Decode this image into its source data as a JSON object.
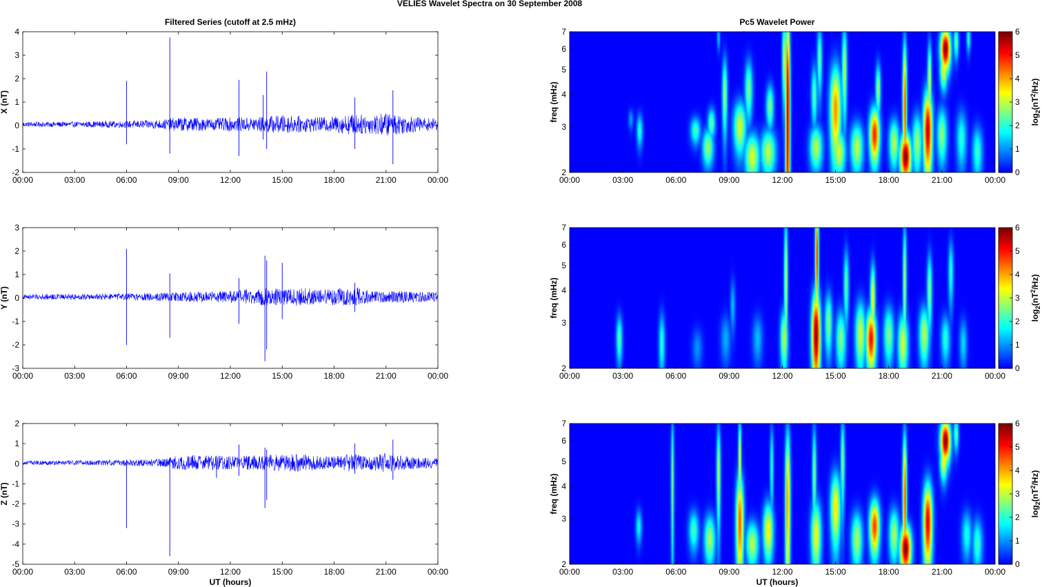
{
  "figure": {
    "suptitle": "VELIES Wavelet Spectra on 30 September 2008",
    "left_title": "Filtered Series (cutoff at 2.5 mHz)",
    "right_title": "Pc5 Wavelet Power",
    "xlabel": "UT (hours)",
    "ylabel_freq": "freq (mHz)",
    "colorbar_label": "log2(nT²/Hz)",
    "colorbar_label_base": "log",
    "colorbar_label_sub": "2",
    "colorbar_label_mid": "(nT",
    "colorbar_label_sup": "2",
    "colorbar_label_end": "/Hz)",
    "colormap": "jet",
    "line_color": "#0000ff"
  },
  "chart_data": [
    {
      "type": "line",
      "component": "X",
      "ylabel": "X (nT)",
      "xlim": [
        0,
        24
      ],
      "ylim": [
        -2,
        4
      ],
      "yticks": [
        "4",
        "3",
        "2",
        "1",
        "0",
        "-1",
        "-2"
      ],
      "xticks": [
        "00:00",
        "03:00",
        "06:00",
        "09:00",
        "12:00",
        "15:00",
        "18:00",
        "21:00",
        "00:00"
      ],
      "noise_envelope": [
        [
          0,
          0.1
        ],
        [
          3,
          0.12
        ],
        [
          6,
          0.15
        ],
        [
          8,
          0.2
        ],
        [
          9,
          0.3
        ],
        [
          10,
          0.3
        ],
        [
          11,
          0.25
        ],
        [
          12,
          0.3
        ],
        [
          13,
          0.3
        ],
        [
          14,
          0.35
        ],
        [
          15,
          0.4
        ],
        [
          16,
          0.35
        ],
        [
          17,
          0.3
        ],
        [
          18,
          0.35
        ],
        [
          19,
          0.45
        ],
        [
          20,
          0.4
        ],
        [
          21,
          0.5
        ],
        [
          22,
          0.4
        ],
        [
          23,
          0.3
        ],
        [
          24,
          0.25
        ]
      ],
      "spikes": [
        {
          "t": 6.0,
          "max": 1.9,
          "min": -0.8
        },
        {
          "t": 8.5,
          "max": 3.75,
          "min": -1.2
        },
        {
          "t": 12.5,
          "max": 1.95,
          "min": -1.3
        },
        {
          "t": 14.1,
          "max": 2.3,
          "min": -1.0
        },
        {
          "t": 13.9,
          "max": 1.3,
          "min": -0.6
        },
        {
          "t": 19.2,
          "max": 1.2,
          "min": -1.0
        },
        {
          "t": 21.4,
          "max": 1.5,
          "min": -1.65
        }
      ]
    },
    {
      "type": "line",
      "component": "Y",
      "ylabel": "Y (nT)",
      "xlim": [
        0,
        24
      ],
      "ylim": [
        -3,
        3
      ],
      "yticks": [
        "3",
        "2",
        "1",
        "0",
        "-1",
        "-2",
        "-3"
      ],
      "xticks": [
        "00:00",
        "03:00",
        "06:00",
        "09:00",
        "12:00",
        "15:00",
        "18:00",
        "21:00",
        "00:00"
      ],
      "noise_envelope": [
        [
          0,
          0.12
        ],
        [
          3,
          0.12
        ],
        [
          6,
          0.15
        ],
        [
          9,
          0.2
        ],
        [
          12,
          0.25
        ],
        [
          14,
          0.4
        ],
        [
          15,
          0.35
        ],
        [
          16,
          0.4
        ],
        [
          17,
          0.3
        ],
        [
          18,
          0.35
        ],
        [
          19,
          0.45
        ],
        [
          20,
          0.3
        ],
        [
          21,
          0.25
        ],
        [
          22,
          0.25
        ],
        [
          24,
          0.2
        ]
      ],
      "spikes": [
        {
          "t": 6.0,
          "max": 2.1,
          "min": -2.0
        },
        {
          "t": 8.5,
          "max": 1.05,
          "min": -1.7
        },
        {
          "t": 12.5,
          "max": 0.85,
          "min": -1.1
        },
        {
          "t": 14.0,
          "max": 1.8,
          "min": -2.7
        },
        {
          "t": 14.1,
          "max": 1.6,
          "min": -2.2
        },
        {
          "t": 15.0,
          "max": 1.5,
          "min": -0.9
        },
        {
          "t": 19.2,
          "max": 0.65,
          "min": -0.6
        }
      ]
    },
    {
      "type": "line",
      "component": "Z",
      "ylabel": "Z (nT)",
      "xlim": [
        0,
        24
      ],
      "ylim": [
        -5,
        2
      ],
      "yticks": [
        "2",
        "1",
        "0",
        "-1",
        "-2",
        "-3",
        "-4",
        "-5"
      ],
      "xticks": [
        "00:00",
        "03:00",
        "06:00",
        "09:00",
        "12:00",
        "15:00",
        "18:00",
        "21:00",
        "00:00"
      ],
      "noise_envelope": [
        [
          0,
          0.1
        ],
        [
          3,
          0.12
        ],
        [
          6,
          0.15
        ],
        [
          8,
          0.2
        ],
        [
          9,
          0.35
        ],
        [
          10,
          0.4
        ],
        [
          11,
          0.35
        ],
        [
          12,
          0.35
        ],
        [
          13,
          0.35
        ],
        [
          14,
          0.4
        ],
        [
          15,
          0.45
        ],
        [
          16,
          0.45
        ],
        [
          17,
          0.35
        ],
        [
          18,
          0.35
        ],
        [
          19,
          0.45
        ],
        [
          20,
          0.35
        ],
        [
          21,
          0.5
        ],
        [
          22,
          0.35
        ],
        [
          24,
          0.25
        ]
      ],
      "spikes": [
        {
          "t": 6.0,
          "max": 0.2,
          "min": -3.2
        },
        {
          "t": 8.5,
          "max": 0.3,
          "min": -4.6
        },
        {
          "t": 11.2,
          "max": 0.4,
          "min": -0.7
        },
        {
          "t": 12.5,
          "max": 0.95,
          "min": -0.6
        },
        {
          "t": 14.0,
          "max": 0.8,
          "min": -2.2
        },
        {
          "t": 14.1,
          "max": 0.7,
          "min": -1.8
        },
        {
          "t": 19.2,
          "max": 1.0,
          "min": -0.5
        },
        {
          "t": 21.4,
          "max": 1.2,
          "min": -0.8
        }
      ]
    },
    {
      "type": "heatmap",
      "component": "X",
      "ylabel": "freq (mHz)",
      "xlim": [
        0,
        24
      ],
      "ylim": [
        2,
        7
      ],
      "yscale": "log",
      "yticks": [
        2,
        3,
        4,
        5,
        6,
        7
      ],
      "xticks": [
        "00:00",
        "03:00",
        "06:00",
        "09:00",
        "12:00",
        "15:00",
        "18:00",
        "21:00",
        "00:00"
      ],
      "clim": [
        0,
        6
      ],
      "cbar_ticks": [
        0,
        1,
        2,
        3,
        4,
        5,
        6
      ],
      "blobs": [
        {
          "t": 3.95,
          "f": 2.9,
          "p": 2.0,
          "w": 0.12,
          "h": 0.3
        },
        {
          "t": 3.45,
          "f": 3.2,
          "p": 1.1,
          "w": 0.1,
          "h": 0.2
        },
        {
          "t": 7.1,
          "f": 2.9,
          "p": 2.2,
          "w": 0.2,
          "h": 0.25
        },
        {
          "t": 7.8,
          "f": 2.5,
          "p": 2.8,
          "w": 0.22,
          "h": 0.3
        },
        {
          "t": 8.0,
          "f": 3.1,
          "p": 2.4,
          "w": 0.15,
          "h": 0.3
        },
        {
          "t": 8.75,
          "f": 4.0,
          "p": 2.8,
          "w": 0.1,
          "h": 1.0
        },
        {
          "t": 9.6,
          "f": 3.0,
          "p": 3.2,
          "w": 0.25,
          "h": 0.5
        },
        {
          "t": 10.3,
          "f": 2.3,
          "p": 3.2,
          "w": 0.3,
          "h": 0.35
        },
        {
          "t": 10.1,
          "f": 4.2,
          "p": 2.6,
          "w": 0.15,
          "h": 0.8
        },
        {
          "t": 11.2,
          "f": 2.4,
          "p": 3.0,
          "w": 0.3,
          "h": 0.35
        },
        {
          "t": 11.3,
          "f": 3.6,
          "p": 2.6,
          "w": 0.15,
          "h": 0.5
        },
        {
          "t": 12.3,
          "f": 3.5,
          "p": 5.8,
          "w": 0.09,
          "h": 3.0
        },
        {
          "t": 12.1,
          "f": 5.5,
          "p": 3.0,
          "w": 0.08,
          "h": 1.5
        },
        {
          "t": 13.9,
          "f": 2.5,
          "p": 3.0,
          "w": 0.25,
          "h": 0.35
        },
        {
          "t": 13.8,
          "f": 4.0,
          "p": 2.3,
          "w": 0.12,
          "h": 0.8
        },
        {
          "t": 14.1,
          "f": 5.5,
          "p": 2.4,
          "w": 0.1,
          "h": 1.2
        },
        {
          "t": 15.0,
          "f": 3.5,
          "p": 4.2,
          "w": 0.22,
          "h": 1.1
        },
        {
          "t": 15.5,
          "f": 5.0,
          "p": 3.0,
          "w": 0.1,
          "h": 1.5
        },
        {
          "t": 15.2,
          "f": 2.4,
          "p": 3.2,
          "w": 0.25,
          "h": 0.35
        },
        {
          "t": 16.2,
          "f": 2.5,
          "p": 3.0,
          "w": 0.25,
          "h": 0.4
        },
        {
          "t": 17.2,
          "f": 2.8,
          "p": 5.0,
          "w": 0.2,
          "h": 0.5
        },
        {
          "t": 17.4,
          "f": 4.2,
          "p": 2.8,
          "w": 0.1,
          "h": 0.7
        },
        {
          "t": 18.3,
          "f": 2.6,
          "p": 3.0,
          "w": 0.2,
          "h": 0.4
        },
        {
          "t": 18.95,
          "f": 2.3,
          "p": 6.0,
          "w": 0.22,
          "h": 0.35
        },
        {
          "t": 18.9,
          "f": 3.6,
          "p": 4.8,
          "w": 0.08,
          "h": 1.8
        },
        {
          "t": 19.6,
          "f": 2.6,
          "p": 2.8,
          "w": 0.2,
          "h": 0.5
        },
        {
          "t": 20.2,
          "f": 2.9,
          "p": 5.6,
          "w": 0.18,
          "h": 0.8
        },
        {
          "t": 20.3,
          "f": 4.5,
          "p": 3.2,
          "w": 0.08,
          "h": 1.2
        },
        {
          "t": 21.0,
          "f": 2.8,
          "p": 2.7,
          "w": 0.2,
          "h": 0.5
        },
        {
          "t": 21.2,
          "f": 6.0,
          "p": 6.0,
          "w": 0.2,
          "h": 0.8
        },
        {
          "t": 21.1,
          "f": 5.0,
          "p": 3.5,
          "w": 0.15,
          "h": 0.6
        },
        {
          "t": 21.8,
          "f": 6.4,
          "p": 2.4,
          "w": 0.1,
          "h": 0.7
        },
        {
          "t": 22.5,
          "f": 6.6,
          "p": 2.0,
          "w": 0.08,
          "h": 0.6
        },
        {
          "t": 22.1,
          "f": 2.7,
          "p": 2.0,
          "w": 0.2,
          "h": 0.5
        },
        {
          "t": 23.0,
          "f": 2.4,
          "p": 2.1,
          "w": 0.2,
          "h": 0.4
        },
        {
          "t": 8.4,
          "f": 6.6,
          "p": 1.5,
          "w": 0.06,
          "h": 0.5
        }
      ]
    },
    {
      "type": "heatmap",
      "component": "Y",
      "ylabel": "freq (mHz)",
      "xlim": [
        0,
        24
      ],
      "ylim": [
        2,
        7
      ],
      "yscale": "log",
      "yticks": [
        2,
        3,
        4,
        5,
        6,
        7
      ],
      "xticks": [
        "00:00",
        "03:00",
        "06:00",
        "09:00",
        "12:00",
        "15:00",
        "18:00",
        "21:00",
        "00:00"
      ],
      "clim": [
        0,
        6
      ],
      "cbar_ticks": [
        0,
        1,
        2,
        3,
        4,
        5,
        6
      ],
      "blobs": [
        {
          "t": 2.8,
          "f": 2.6,
          "p": 2.3,
          "w": 0.12,
          "h": 0.4
        },
        {
          "t": 5.2,
          "f": 2.5,
          "p": 2.0,
          "w": 0.12,
          "h": 0.5
        },
        {
          "t": 7.2,
          "f": 2.4,
          "p": 1.0,
          "w": 0.2,
          "h": 0.3
        },
        {
          "t": 8.8,
          "f": 2.6,
          "p": 1.2,
          "w": 0.2,
          "h": 0.4
        },
        {
          "t": 9.2,
          "f": 3.5,
          "p": 1.3,
          "w": 0.1,
          "h": 0.6
        },
        {
          "t": 10.6,
          "f": 2.6,
          "p": 1.3,
          "w": 0.2,
          "h": 0.4
        },
        {
          "t": 12.1,
          "f": 2.6,
          "p": 3.0,
          "w": 0.15,
          "h": 0.5
        },
        {
          "t": 12.2,
          "f": 4.5,
          "p": 3.2,
          "w": 0.07,
          "h": 2.0
        },
        {
          "t": 13.9,
          "f": 2.7,
          "p": 6.0,
          "w": 0.17,
          "h": 0.8
        },
        {
          "t": 13.95,
          "f": 5.5,
          "p": 5.0,
          "w": 0.07,
          "h": 2.0
        },
        {
          "t": 14.6,
          "f": 3.0,
          "p": 2.6,
          "w": 0.15,
          "h": 0.6
        },
        {
          "t": 15.3,
          "f": 2.6,
          "p": 2.6,
          "w": 0.2,
          "h": 0.5
        },
        {
          "t": 15.6,
          "f": 4.2,
          "p": 2.4,
          "w": 0.1,
          "h": 1.0
        },
        {
          "t": 16.4,
          "f": 2.7,
          "p": 3.2,
          "w": 0.2,
          "h": 0.6
        },
        {
          "t": 17.0,
          "f": 2.6,
          "p": 5.2,
          "w": 0.2,
          "h": 0.5
        },
        {
          "t": 17.1,
          "f": 3.7,
          "p": 3.4,
          "w": 0.1,
          "h": 0.9
        },
        {
          "t": 18.0,
          "f": 2.7,
          "p": 2.6,
          "w": 0.2,
          "h": 0.5
        },
        {
          "t": 18.8,
          "f": 2.5,
          "p": 3.2,
          "w": 0.2,
          "h": 0.5
        },
        {
          "t": 18.9,
          "f": 4.4,
          "p": 3.0,
          "w": 0.07,
          "h": 1.8
        },
        {
          "t": 20.0,
          "f": 2.7,
          "p": 3.0,
          "w": 0.2,
          "h": 0.5
        },
        {
          "t": 20.3,
          "f": 4.0,
          "p": 2.6,
          "w": 0.1,
          "h": 1.0
        },
        {
          "t": 21.2,
          "f": 2.6,
          "p": 2.0,
          "w": 0.18,
          "h": 0.4
        },
        {
          "t": 21.5,
          "f": 4.7,
          "p": 2.0,
          "w": 0.1,
          "h": 1.0
        },
        {
          "t": 22.2,
          "f": 2.5,
          "p": 1.5,
          "w": 0.15,
          "h": 0.4
        }
      ]
    },
    {
      "type": "heatmap",
      "component": "Z",
      "ylabel": "freq (mHz)",
      "xlim": [
        0,
        24
      ],
      "ylim": [
        2,
        7
      ],
      "yscale": "log",
      "yticks": [
        2,
        3,
        4,
        5,
        6,
        7
      ],
      "xticks": [
        "00:00",
        "03:00",
        "06:00",
        "09:00",
        "12:00",
        "15:00",
        "18:00",
        "21:00",
        "00:00"
      ],
      "clim": [
        0,
        6
      ],
      "cbar_ticks": [
        0,
        1,
        2,
        3,
        4,
        5,
        6
      ],
      "blobs": [
        {
          "t": 3.9,
          "f": 2.8,
          "p": 1.8,
          "w": 0.12,
          "h": 0.3
        },
        {
          "t": 5.8,
          "f": 4.2,
          "p": 2.6,
          "w": 0.06,
          "h": 2.0
        },
        {
          "t": 7.0,
          "f": 2.7,
          "p": 2.2,
          "w": 0.2,
          "h": 0.35
        },
        {
          "t": 7.9,
          "f": 2.5,
          "p": 2.9,
          "w": 0.22,
          "h": 0.4
        },
        {
          "t": 8.4,
          "f": 4.5,
          "p": 3.0,
          "w": 0.08,
          "h": 1.5
        },
        {
          "t": 9.6,
          "f": 2.9,
          "p": 4.6,
          "w": 0.15,
          "h": 1.0
        },
        {
          "t": 9.6,
          "f": 5.0,
          "p": 3.5,
          "w": 0.06,
          "h": 1.5
        },
        {
          "t": 10.3,
          "f": 2.4,
          "p": 3.0,
          "w": 0.25,
          "h": 0.35
        },
        {
          "t": 11.2,
          "f": 2.7,
          "p": 3.6,
          "w": 0.2,
          "h": 0.5
        },
        {
          "t": 11.4,
          "f": 4.8,
          "p": 2.2,
          "w": 0.07,
          "h": 1.3
        },
        {
          "t": 12.3,
          "f": 3.5,
          "p": 4.2,
          "w": 0.1,
          "h": 2.0
        },
        {
          "t": 13.9,
          "f": 2.6,
          "p": 3.4,
          "w": 0.2,
          "h": 0.6
        },
        {
          "t": 13.8,
          "f": 4.5,
          "p": 2.6,
          "w": 0.08,
          "h": 1.5
        },
        {
          "t": 15.0,
          "f": 3.3,
          "p": 3.6,
          "w": 0.2,
          "h": 0.8
        },
        {
          "t": 15.4,
          "f": 5.0,
          "p": 2.6,
          "w": 0.08,
          "h": 1.5
        },
        {
          "t": 16.2,
          "f": 2.5,
          "p": 2.9,
          "w": 0.22,
          "h": 0.45
        },
        {
          "t": 17.2,
          "f": 2.8,
          "p": 4.8,
          "w": 0.2,
          "h": 0.5
        },
        {
          "t": 18.3,
          "f": 2.6,
          "p": 2.9,
          "w": 0.2,
          "h": 0.45
        },
        {
          "t": 18.95,
          "f": 2.3,
          "p": 6.0,
          "w": 0.22,
          "h": 0.35
        },
        {
          "t": 18.9,
          "f": 3.6,
          "p": 4.8,
          "w": 0.08,
          "h": 1.8
        },
        {
          "t": 20.2,
          "f": 2.9,
          "p": 5.4,
          "w": 0.18,
          "h": 0.8
        },
        {
          "t": 21.2,
          "f": 6.0,
          "p": 6.0,
          "w": 0.2,
          "h": 0.8
        },
        {
          "t": 21.1,
          "f": 5.0,
          "p": 3.5,
          "w": 0.15,
          "h": 0.6
        },
        {
          "t": 21.8,
          "f": 6.4,
          "p": 2.4,
          "w": 0.1,
          "h": 0.7
        },
        {
          "t": 22.4,
          "f": 2.6,
          "p": 1.9,
          "w": 0.2,
          "h": 0.4
        },
        {
          "t": 23.0,
          "f": 2.4,
          "p": 2.1,
          "w": 0.2,
          "h": 0.4
        }
      ]
    }
  ]
}
